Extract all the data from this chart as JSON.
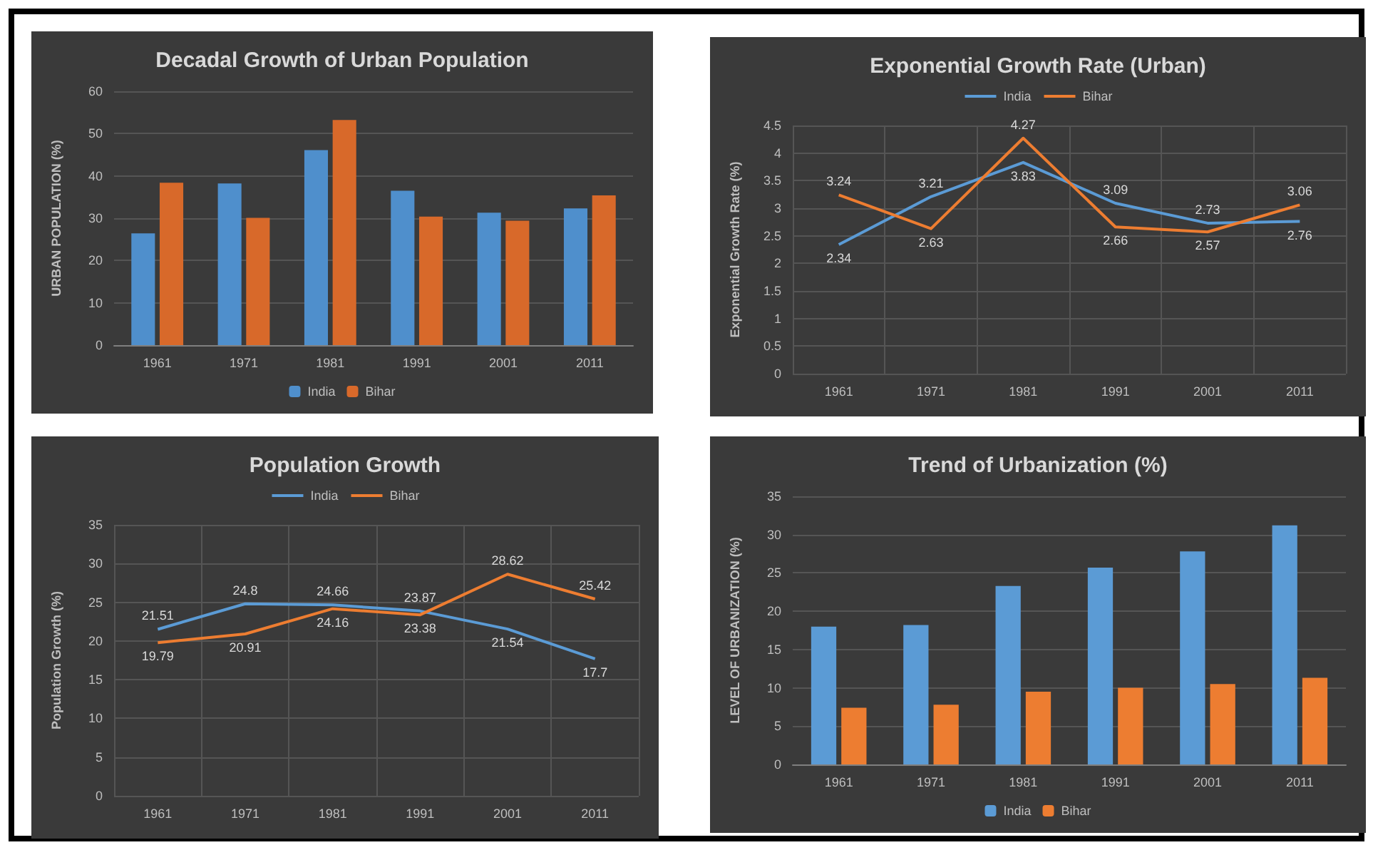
{
  "chart_data": [
    {
      "type": "bar",
      "title": "Decadal Growth of Urban Population",
      "ylabel": "URBAN POPULATION (%)",
      "categories": [
        "1961",
        "1971",
        "1981",
        "1991",
        "2001",
        "2011"
      ],
      "series": [
        {
          "name": "India",
          "color": "#4f8fcc",
          "values": [
            26.4,
            38.2,
            46.1,
            36.5,
            31.3,
            32.3
          ]
        },
        {
          "name": "Bihar",
          "color": "#d8692a",
          "values": [
            38.4,
            30.1,
            53.2,
            30.4,
            29.4,
            35.4
          ]
        }
      ],
      "ylim": [
        0,
        60
      ],
      "yticks": [
        0,
        10,
        20,
        30,
        40,
        50,
        60
      ],
      "grid": "y",
      "legend": "bottom"
    },
    {
      "type": "line",
      "title": "Exponential Growth Rate (Urban)",
      "ylabel": "Exponential Growth Rate (%)",
      "categories": [
        "1961",
        "1971",
        "1981",
        "1991",
        "2001",
        "2011"
      ],
      "series": [
        {
          "name": "India",
          "color": "#5b9bd5",
          "values": [
            2.34,
            3.21,
            3.83,
            3.09,
            2.73,
            2.76
          ]
        },
        {
          "name": "Bihar",
          "color": "#ed7d31",
          "values": [
            3.24,
            2.63,
            4.27,
            2.66,
            2.57,
            3.06
          ]
        }
      ],
      "ylim": [
        0,
        4.5
      ],
      "yticks": [
        0,
        0.5,
        1,
        1.5,
        2,
        2.5,
        3,
        3.5,
        4,
        4.5
      ],
      "grid": true,
      "legend": "top",
      "data_labels": true,
      "marker": "none"
    },
    {
      "type": "line",
      "title": "Population Growth",
      "ylabel": "Population Growth (%)",
      "categories": [
        "1961",
        "1971",
        "1981",
        "1991",
        "2001",
        "2011"
      ],
      "series": [
        {
          "name": "India",
          "color": "#5b9bd5",
          "values": [
            21.51,
            24.8,
            24.66,
            23.87,
            21.54,
            17.7
          ]
        },
        {
          "name": "Bihar",
          "color": "#ed7d31",
          "values": [
            19.79,
            20.91,
            24.16,
            23.38,
            28.62,
            25.42
          ]
        }
      ],
      "ylim": [
        0,
        35
      ],
      "yticks": [
        0,
        5,
        10,
        15,
        20,
        25,
        30,
        35
      ],
      "grid": true,
      "legend": "top",
      "data_labels": true,
      "marker": "none"
    },
    {
      "type": "bar",
      "title": "Trend of Urbanization (%)",
      "ylabel": "LEVEL OF URBANIZATION (%)",
      "categories": [
        "1961",
        "1971",
        "1981",
        "1991",
        "2001",
        "2011"
      ],
      "series": [
        {
          "name": "India",
          "color": "#5b9bd5",
          "values": [
            18.0,
            18.2,
            23.3,
            25.7,
            27.8,
            31.2
          ]
        },
        {
          "name": "Bihar",
          "color": "#ed7d31",
          "values": [
            7.4,
            7.8,
            9.5,
            10.0,
            10.5,
            11.3
          ]
        }
      ],
      "ylim": [
        0,
        35
      ],
      "yticks": [
        0,
        5,
        10,
        15,
        20,
        25,
        30,
        35
      ],
      "grid": "y",
      "legend": "bottom"
    }
  ]
}
